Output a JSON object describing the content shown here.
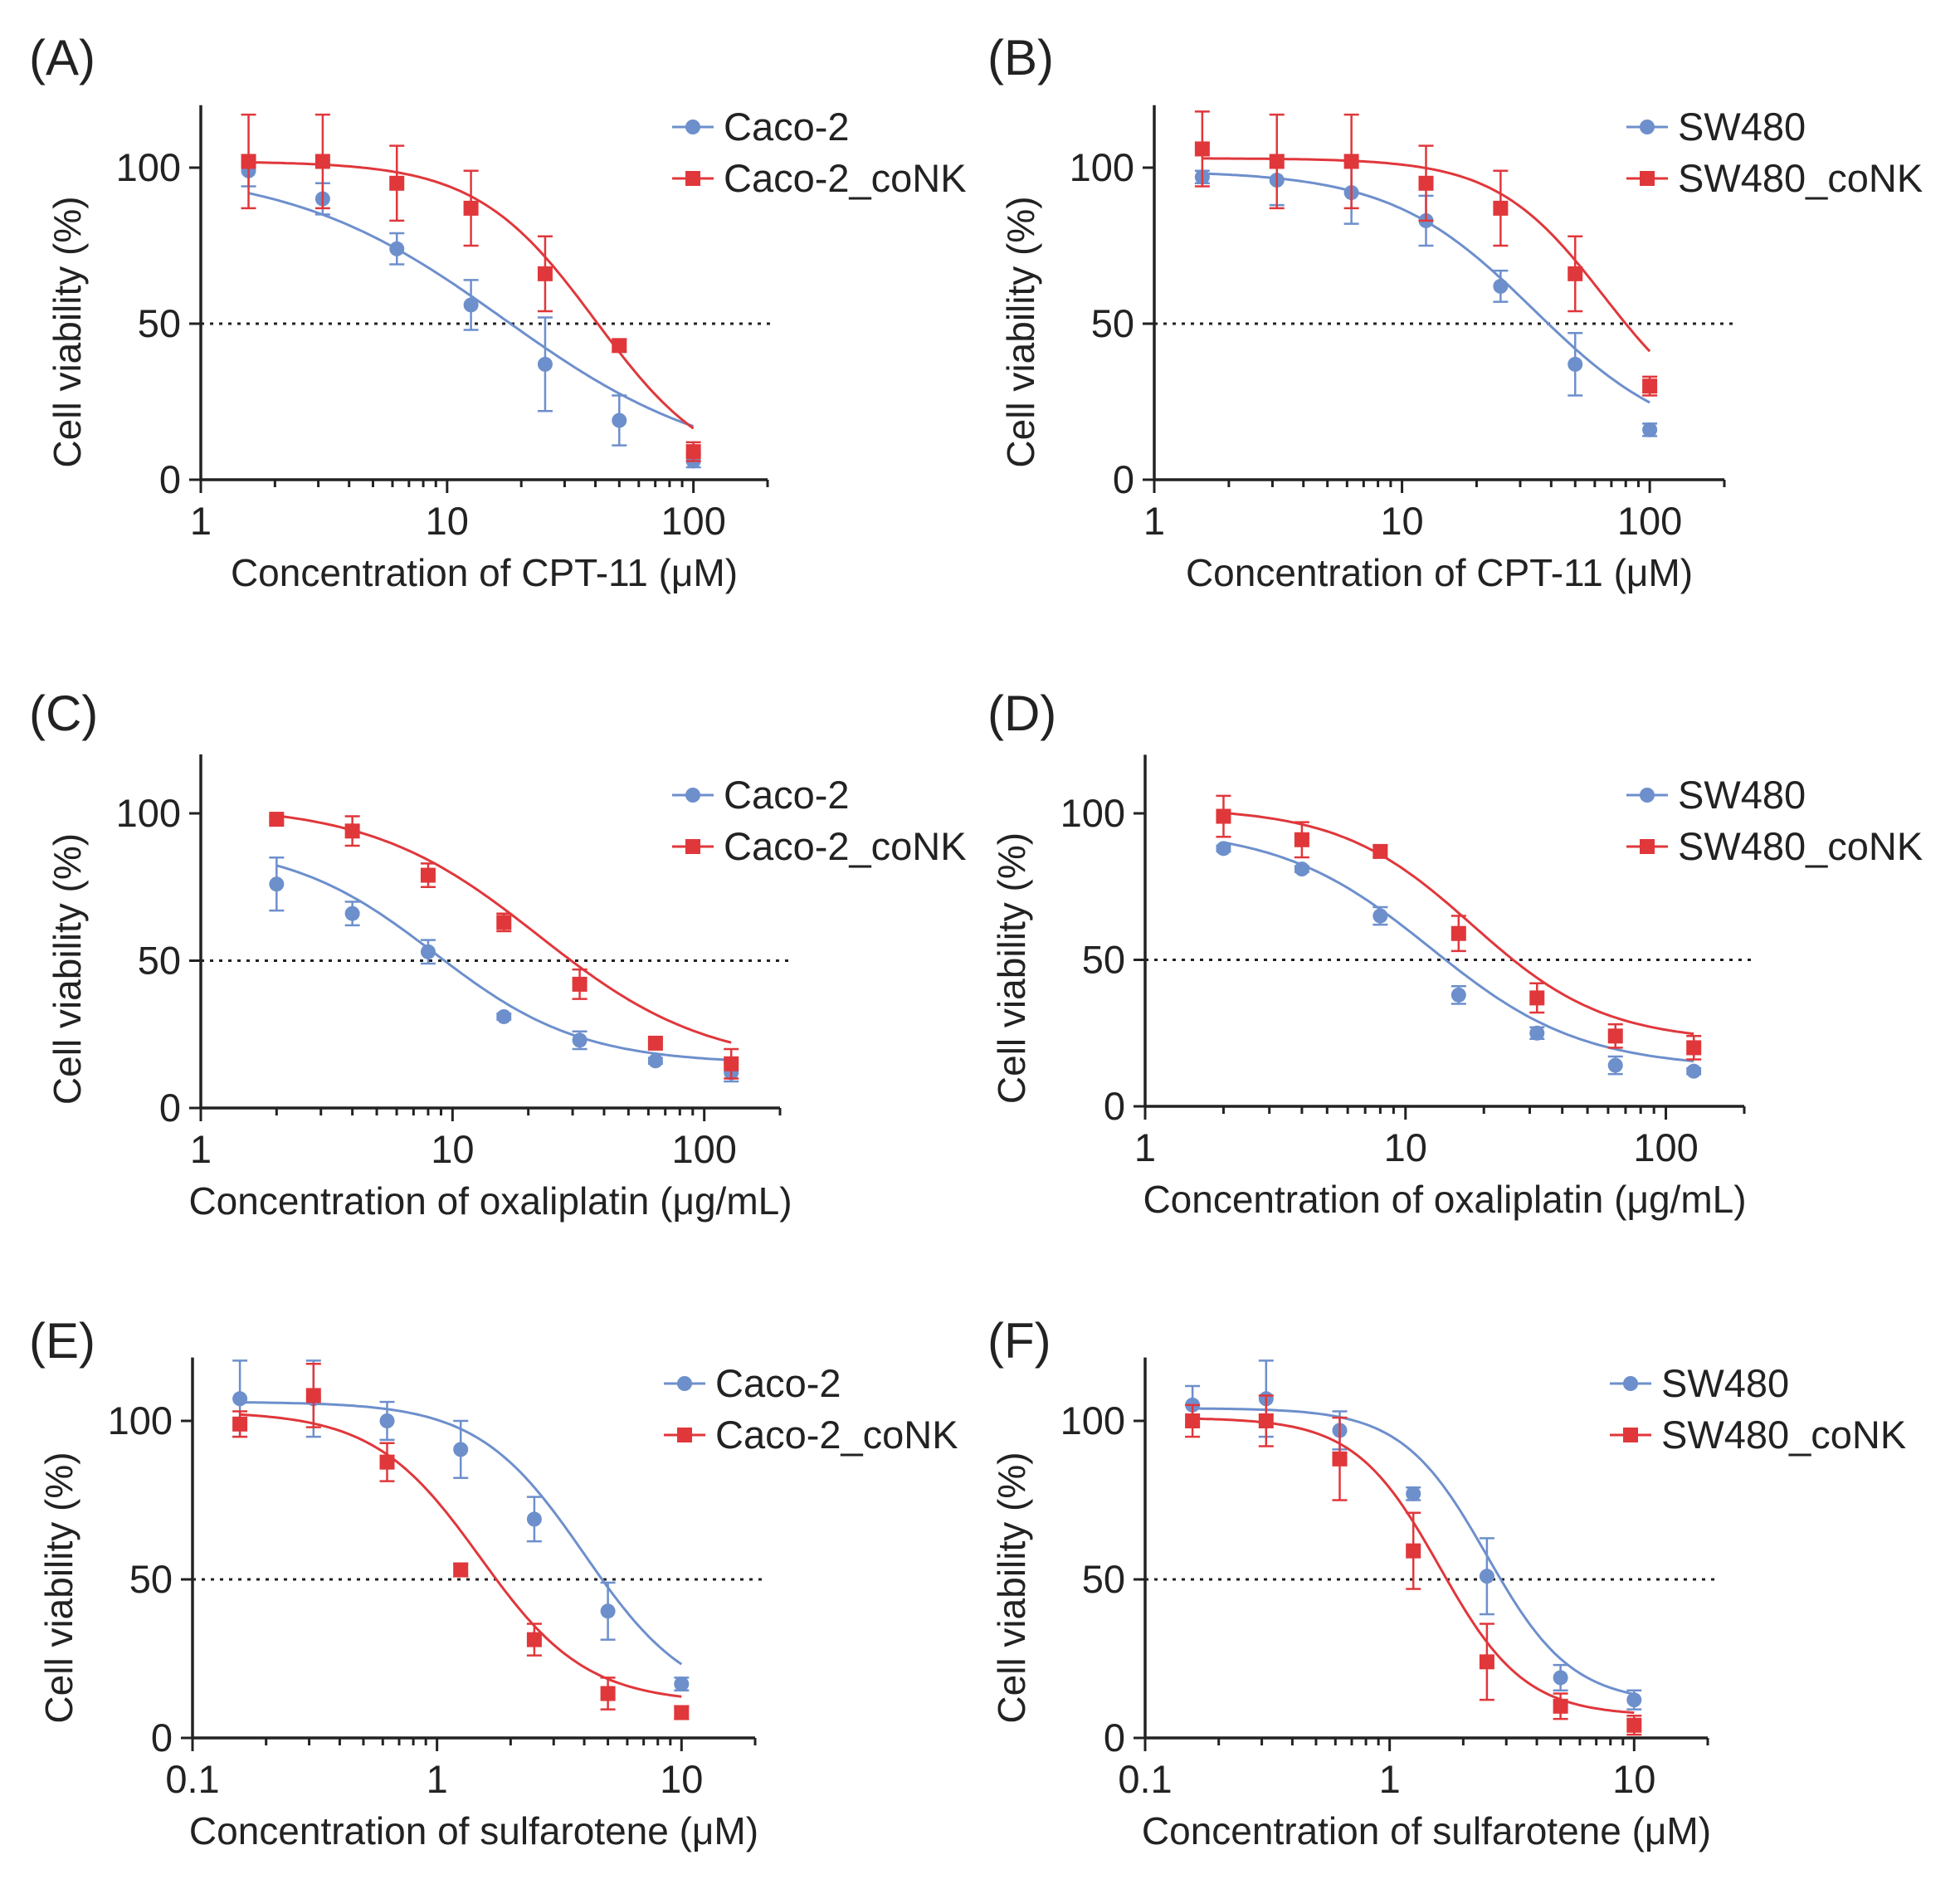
{
  "colors": {
    "blue": "#6d8fcc",
    "red": "#e0373b",
    "axis": "#222222"
  },
  "chart_data": [
    {
      "type": "scatter",
      "panel": "(A)",
      "xlabel": "Concentration of CPT-11 (μM)",
      "ylabel": "Cell viability (%)",
      "xscale": "log",
      "xlim": [
        1,
        200
      ],
      "ylim": [
        0,
        120
      ],
      "xticks": [
        1,
        10,
        100
      ],
      "xtick_labels": [
        "1",
        "10",
        "100"
      ],
      "yticks": [
        0,
        50,
        100
      ],
      "ytick_labels": [
        "0",
        "50",
        "100"
      ],
      "reference_line": 50,
      "legend_position": "top-right",
      "series": [
        {
          "name": "Caco-2",
          "color": "blue",
          "marker": "circle",
          "x": [
            1.5625,
            3.125,
            6.25,
            12.5,
            25,
            50,
            100
          ],
          "y": [
            99,
            90,
            74,
            56,
            37,
            19,
            6
          ],
          "err": [
            5,
            5,
            5,
            8,
            15,
            8,
            2
          ],
          "fit": {
            "top": 100,
            "bottom": 3,
            "ec50": 17,
            "hill": 1.0
          }
        },
        {
          "name": "Caco-2_coNK",
          "color": "red",
          "marker": "square",
          "x": [
            1.5625,
            3.125,
            6.25,
            12.5,
            25,
            50,
            100
          ],
          "y": [
            102,
            102,
            95,
            87,
            66,
            43,
            9
          ],
          "err": [
            15,
            15,
            12,
            12,
            12,
            2,
            3
          ],
          "fit": {
            "top": 102,
            "bottom": 0,
            "ec50": 40,
            "hill": 1.8
          }
        }
      ]
    },
    {
      "type": "scatter",
      "panel": "(B)",
      "xlabel": "Concentration of CPT-11 (μM)",
      "ylabel": "Cell viability (%)",
      "xscale": "log",
      "xlim": [
        1,
        200
      ],
      "ylim": [
        0,
        120
      ],
      "xticks": [
        1,
        10,
        100
      ],
      "xtick_labels": [
        "1",
        "10",
        "100"
      ],
      "yticks": [
        0,
        50,
        100
      ],
      "ytick_labels": [
        "0",
        "50",
        "100"
      ],
      "reference_line": 50,
      "legend_position": "top-right",
      "series": [
        {
          "name": "SW480",
          "color": "blue",
          "marker": "circle",
          "x": [
            1.5625,
            3.125,
            6.25,
            12.5,
            25,
            50,
            100
          ],
          "y": [
            97,
            96,
            92,
            83,
            62,
            37,
            16
          ],
          "err": [
            2,
            8,
            10,
            8,
            5,
            10,
            2
          ],
          "fit": {
            "top": 99,
            "bottom": 10,
            "ec50": 34,
            "hill": 1.5
          }
        },
        {
          "name": "SW480_coNK",
          "color": "red",
          "marker": "square",
          "x": [
            1.5625,
            3.125,
            6.25,
            12.5,
            25,
            50,
            100
          ],
          "y": [
            106,
            102,
            102,
            95,
            87,
            66,
            30
          ],
          "err": [
            12,
            15,
            15,
            12,
            12,
            12,
            3
          ],
          "fit": {
            "top": 103,
            "bottom": 15,
            "ec50": 65,
            "hill": 2.0
          }
        }
      ]
    },
    {
      "type": "scatter",
      "panel": "(C)",
      "xlabel": "Concentration of oxaliplatin (μg/mL)",
      "ylabel": "Cell viability (%)",
      "xscale": "log",
      "xlim": [
        1,
        200
      ],
      "ylim": [
        0,
        120
      ],
      "xticks": [
        1,
        10,
        100
      ],
      "xtick_labels": [
        "1",
        "10",
        "100"
      ],
      "yticks": [
        0,
        50,
        100
      ],
      "ytick_labels": [
        "0",
        "50",
        "100"
      ],
      "reference_line": 50,
      "legend_position": "top-right",
      "series": [
        {
          "name": "Caco-2",
          "color": "blue",
          "marker": "circle",
          "x": [
            2,
            4,
            8,
            16,
            32,
            64,
            128
          ],
          "y": [
            76,
            66,
            53,
            31,
            23,
            16,
            12
          ],
          "err": [
            9,
            4,
            4,
            1,
            3,
            1,
            3
          ],
          "fit": {
            "top": 90,
            "bottom": 15,
            "ec50": 8.5,
            "hill": 1.5
          }
        },
        {
          "name": "Caco-2_coNK",
          "color": "red",
          "marker": "square",
          "x": [
            2,
            4,
            8,
            16,
            32,
            64,
            128
          ],
          "y": [
            98,
            94,
            79,
            63,
            42,
            22,
            15
          ],
          "err": [
            1,
            5,
            4,
            3,
            5,
            1,
            5
          ],
          "fit": {
            "top": 103,
            "bottom": 14,
            "ec50": 22,
            "hill": 1.3
          }
        }
      ]
    },
    {
      "type": "scatter",
      "panel": "(D)",
      "xlabel": "Concentration of oxaliplatin (μg/mL)",
      "ylabel": "Cell viability (%)",
      "xscale": "log",
      "xlim": [
        1,
        200
      ],
      "ylim": [
        0,
        120
      ],
      "xticks": [
        1,
        10,
        100
      ],
      "xtick_labels": [
        "1",
        "10",
        "100"
      ],
      "yticks": [
        0,
        50,
        100
      ],
      "ytick_labels": [
        "0",
        "50",
        "100"
      ],
      "reference_line": 50,
      "legend_position": "top-right",
      "series": [
        {
          "name": "SW480",
          "color": "blue",
          "marker": "circle",
          "x": [
            2,
            4,
            8,
            16,
            32,
            64,
            128
          ],
          "y": [
            88,
            81,
            65,
            38,
            25,
            14,
            12
          ],
          "err": [
            1,
            1,
            3,
            3,
            2,
            3,
            1
          ],
          "fit": {
            "top": 95,
            "bottom": 13,
            "ec50": 12.5,
            "hill": 1.5
          }
        },
        {
          "name": "SW480_coNK",
          "color": "red",
          "marker": "square",
          "x": [
            2,
            4,
            8,
            16,
            32,
            64,
            128
          ],
          "y": [
            99,
            91,
            87,
            59,
            37,
            24,
            20
          ],
          "err": [
            7,
            6,
            2,
            6,
            5,
            4,
            4
          ],
          "fit": {
            "top": 102,
            "bottom": 22,
            "ec50": 18,
            "hill": 1.7
          }
        }
      ]
    },
    {
      "type": "scatter",
      "panel": "(E)",
      "xlabel": "Concentration of sulfarotene (μM)",
      "ylabel": "Cell viability (%)",
      "xscale": "log",
      "xlim": [
        0.1,
        20
      ],
      "ylim": [
        0,
        120
      ],
      "xticks": [
        0.1,
        1,
        10
      ],
      "xtick_labels": [
        "0.1",
        "1",
        "10"
      ],
      "yticks": [
        0,
        50,
        100
      ],
      "ytick_labels": [
        "0",
        "50",
        "100"
      ],
      "reference_line": 50,
      "legend_position": "top-right",
      "series": [
        {
          "name": "Caco-2",
          "color": "blue",
          "marker": "circle",
          "x": [
            0.15625,
            0.3125,
            0.625,
            1.25,
            2.5,
            5,
            10
          ],
          "y": [
            107,
            107,
            100,
            91,
            69,
            40,
            17
          ],
          "err": [
            12,
            12,
            6,
            9,
            7,
            9,
            2
          ],
          "fit": {
            "top": 106,
            "bottom": 10,
            "ec50": 4.0,
            "hill": 2.0
          }
        },
        {
          "name": "Caco-2_coNK",
          "color": "red",
          "marker": "square",
          "x": [
            0.15625,
            0.3125,
            0.625,
            1.25,
            2.5,
            5,
            10
          ],
          "y": [
            99,
            108,
            87,
            53,
            31,
            14,
            8
          ],
          "err": [
            4,
            10,
            6,
            2,
            5,
            5,
            2
          ],
          "fit": {
            "top": 103,
            "bottom": 11,
            "ec50": 1.5,
            "hill": 2.0
          }
        }
      ]
    },
    {
      "type": "scatter",
      "panel": "(F)",
      "xlabel": "Concentration of sulfarotene (μM)",
      "ylabel": "Cell viability (%)",
      "xscale": "log",
      "xlim": [
        0.1,
        20
      ],
      "ylim": [
        0,
        120
      ],
      "xticks": [
        0.1,
        1,
        10
      ],
      "xtick_labels": [
        "0.1",
        "1",
        "10"
      ],
      "yticks": [
        0,
        50,
        100
      ],
      "ytick_labels": [
        "0",
        "50",
        "100"
      ],
      "reference_line": 50,
      "legend_position": "top-right",
      "series": [
        {
          "name": "SW480",
          "color": "blue",
          "marker": "circle",
          "x": [
            0.15625,
            0.3125,
            0.625,
            1.25,
            2.5,
            5,
            10
          ],
          "y": [
            105,
            107,
            97,
            77,
            51,
            19,
            12
          ],
          "err": [
            6,
            12,
            6,
            2,
            12,
            4,
            3
          ],
          "fit": {
            "top": 104,
            "bottom": 11,
            "ec50": 2.5,
            "hill": 2.5
          }
        },
        {
          "name": "SW480_coNK",
          "color": "red",
          "marker": "square",
          "x": [
            0.15625,
            0.3125,
            0.625,
            1.25,
            2.5,
            5,
            10
          ],
          "y": [
            100,
            100,
            88,
            59,
            24,
            10,
            4
          ],
          "err": [
            5,
            8,
            13,
            12,
            12,
            4,
            3
          ],
          "fit": {
            "top": 101,
            "bottom": 7,
            "ec50": 1.6,
            "hill": 2.5
          }
        }
      ]
    }
  ]
}
